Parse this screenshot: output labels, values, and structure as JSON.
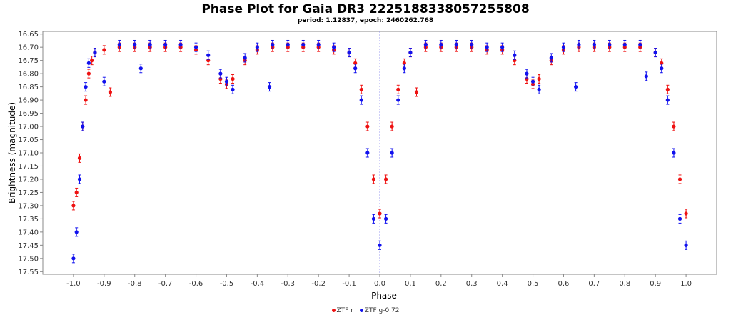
{
  "chart_data": {
    "type": "scatter",
    "title": "Phase Plot for Gaia DR3 2225188338057255808",
    "subtitle": "period: 1.12837, epoch: 2460262.768",
    "xlabel": "Phase",
    "ylabel": "Brightness (magnitude)",
    "xlim": [
      -1.1,
      1.1
    ],
    "ylim": [
      16.64,
      17.56
    ],
    "y_inverted": true,
    "grid": false,
    "legend_position": "bottom-center",
    "x_ticks": [
      "-1.0",
      "-0.9",
      "-0.8",
      "-0.7",
      "-0.6",
      "-0.5",
      "-0.4",
      "-0.3",
      "-0.2",
      "-0.1",
      "0.0",
      "0.1",
      "0.2",
      "0.3",
      "0.4",
      "0.5",
      "0.6",
      "0.7",
      "0.8",
      "0.9",
      "1.0"
    ],
    "y_ticks": [
      "16.65",
      "16.70",
      "16.75",
      "16.80",
      "16.85",
      "16.90",
      "16.95",
      "17.00",
      "17.05",
      "17.10",
      "17.15",
      "17.20",
      "17.25",
      "17.30",
      "17.35",
      "17.40",
      "17.45",
      "17.50",
      "17.55"
    ],
    "vertical_line_x": 0.0,
    "series": [
      {
        "name": "ZTF r",
        "color": "#ee1111",
        "points": [
          [
            -1.0,
            17.3
          ],
          [
            -0.99,
            17.25
          ],
          [
            -0.98,
            17.12
          ],
          [
            -0.97,
            17.0
          ],
          [
            -0.96,
            16.9
          ],
          [
            -0.95,
            16.8
          ],
          [
            -0.94,
            16.75
          ],
          [
            -0.93,
            16.72
          ],
          [
            -0.9,
            16.71
          ],
          [
            -0.88,
            16.87
          ],
          [
            -0.85,
            16.7
          ],
          [
            -0.8,
            16.7
          ],
          [
            -0.75,
            16.7
          ],
          [
            -0.7,
            16.7
          ],
          [
            -0.65,
            16.7
          ],
          [
            -0.6,
            16.71
          ],
          [
            -0.56,
            16.75
          ],
          [
            -0.52,
            16.82
          ],
          [
            -0.5,
            16.84
          ],
          [
            -0.48,
            16.82
          ],
          [
            -0.44,
            16.75
          ],
          [
            -0.4,
            16.71
          ],
          [
            -0.35,
            16.7
          ],
          [
            -0.3,
            16.7
          ],
          [
            -0.25,
            16.7
          ],
          [
            -0.2,
            16.7
          ],
          [
            -0.15,
            16.71
          ],
          [
            -0.1,
            16.72
          ],
          [
            -0.08,
            16.76
          ],
          [
            -0.06,
            16.86
          ],
          [
            -0.04,
            17.0
          ],
          [
            -0.02,
            17.2
          ],
          [
            0.0,
            17.33
          ],
          [
            0.02,
            17.2
          ],
          [
            0.04,
            17.0
          ],
          [
            0.06,
            16.86
          ],
          [
            0.08,
            16.76
          ],
          [
            0.1,
            16.72
          ],
          [
            0.12,
            16.87
          ],
          [
            0.15,
            16.7
          ],
          [
            0.2,
            16.7
          ],
          [
            0.25,
            16.7
          ],
          [
            0.3,
            16.7
          ],
          [
            0.35,
            16.71
          ],
          [
            0.4,
            16.71
          ],
          [
            0.44,
            16.75
          ],
          [
            0.48,
            16.82
          ],
          [
            0.5,
            16.84
          ],
          [
            0.52,
            16.82
          ],
          [
            0.56,
            16.75
          ],
          [
            0.6,
            16.71
          ],
          [
            0.65,
            16.7
          ],
          [
            0.7,
            16.7
          ],
          [
            0.75,
            16.7
          ],
          [
            0.8,
            16.7
          ],
          [
            0.85,
            16.7
          ],
          [
            0.9,
            16.72
          ],
          [
            0.92,
            16.76
          ],
          [
            0.94,
            16.86
          ],
          [
            0.96,
            17.0
          ],
          [
            0.98,
            17.2
          ],
          [
            1.0,
            17.33
          ]
        ]
      },
      {
        "name": "ZTF g-0.72",
        "color": "#1111ee",
        "points": [
          [
            -1.0,
            17.5
          ],
          [
            -0.99,
            17.4
          ],
          [
            -0.98,
            17.2
          ],
          [
            -0.97,
            17.0
          ],
          [
            -0.96,
            16.85
          ],
          [
            -0.95,
            16.76
          ],
          [
            -0.93,
            16.72
          ],
          [
            -0.9,
            16.83
          ],
          [
            -0.85,
            16.69
          ],
          [
            -0.8,
            16.69
          ],
          [
            -0.78,
            16.78
          ],
          [
            -0.75,
            16.69
          ],
          [
            -0.7,
            16.69
          ],
          [
            -0.65,
            16.69
          ],
          [
            -0.6,
            16.7
          ],
          [
            -0.56,
            16.73
          ],
          [
            -0.52,
            16.8
          ],
          [
            -0.5,
            16.83
          ],
          [
            -0.48,
            16.86
          ],
          [
            -0.44,
            16.74
          ],
          [
            -0.4,
            16.7
          ],
          [
            -0.36,
            16.85
          ],
          [
            -0.35,
            16.69
          ],
          [
            -0.3,
            16.69
          ],
          [
            -0.25,
            16.69
          ],
          [
            -0.2,
            16.69
          ],
          [
            -0.15,
            16.7
          ],
          [
            -0.1,
            16.72
          ],
          [
            -0.08,
            16.78
          ],
          [
            -0.06,
            16.9
          ],
          [
            -0.04,
            17.1
          ],
          [
            -0.02,
            17.35
          ],
          [
            0.0,
            17.45
          ],
          [
            0.02,
            17.35
          ],
          [
            0.04,
            17.1
          ],
          [
            0.06,
            16.9
          ],
          [
            0.08,
            16.78
          ],
          [
            0.1,
            16.72
          ],
          [
            0.15,
            16.69
          ],
          [
            0.2,
            16.69
          ],
          [
            0.25,
            16.69
          ],
          [
            0.3,
            16.69
          ],
          [
            0.35,
            16.7
          ],
          [
            0.4,
            16.7
          ],
          [
            0.44,
            16.73
          ],
          [
            0.48,
            16.8
          ],
          [
            0.5,
            16.83
          ],
          [
            0.52,
            16.86
          ],
          [
            0.56,
            16.74
          ],
          [
            0.6,
            16.7
          ],
          [
            0.64,
            16.85
          ],
          [
            0.65,
            16.69
          ],
          [
            0.7,
            16.69
          ],
          [
            0.75,
            16.69
          ],
          [
            0.8,
            16.69
          ],
          [
            0.85,
            16.69
          ],
          [
            0.87,
            16.81
          ],
          [
            0.9,
            16.72
          ],
          [
            0.92,
            16.78
          ],
          [
            0.94,
            16.9
          ],
          [
            0.96,
            17.1
          ],
          [
            0.98,
            17.35
          ],
          [
            1.0,
            17.45
          ]
        ]
      }
    ]
  }
}
